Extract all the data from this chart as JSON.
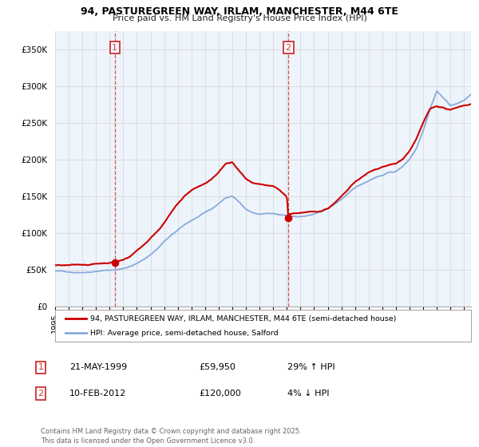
{
  "title1": "94, PASTUREGREEN WAY, IRLAM, MANCHESTER, M44 6TE",
  "title2": "Price paid vs. HM Land Registry's House Price Index (HPI)",
  "legend_line1": "94, PASTUREGREEN WAY, IRLAM, MANCHESTER, M44 6TE (semi-detached house)",
  "legend_line2": "HPI: Average price, semi-detached house, Salford",
  "annotation1_label": "1",
  "annotation1_date": "21-MAY-1999",
  "annotation1_price": "£59,950",
  "annotation1_hpi": "29% ↑ HPI",
  "annotation2_label": "2",
  "annotation2_date": "10-FEB-2012",
  "annotation2_price": "£120,000",
  "annotation2_hpi": "4% ↓ HPI",
  "footer": "Contains HM Land Registry data © Crown copyright and database right 2025.\nThis data is licensed under the Open Government Licence v3.0.",
  "transaction1_year": 1999.38,
  "transaction1_price": 59950,
  "transaction2_year": 2012.11,
  "transaction2_price": 120000,
  "red_color": "#cc0000",
  "blue_color": "#88aadd",
  "vline_color": "#cc3333",
  "grid_color": "#dddddd",
  "bg_color": "#ffffff",
  "plot_bg_color": "#eef4fb",
  "ylim": [
    0,
    375000
  ],
  "xlim_start": 1995,
  "xlim_end": 2025.5,
  "yticks": [
    0,
    50000,
    100000,
    150000,
    200000,
    250000,
    300000,
    350000
  ],
  "xticks": [
    1995,
    1996,
    1997,
    1998,
    1999,
    2000,
    2001,
    2002,
    2003,
    2004,
    2005,
    2006,
    2007,
    2008,
    2009,
    2010,
    2011,
    2012,
    2013,
    2014,
    2015,
    2016,
    2017,
    2018,
    2019,
    2020,
    2021,
    2022,
    2023,
    2024,
    2025
  ],
  "hpi_points": [
    [
      1995.0,
      48000
    ],
    [
      1995.5,
      47500
    ],
    [
      1996.0,
      47000
    ],
    [
      1996.5,
      46500
    ],
    [
      1997.0,
      47000
    ],
    [
      1997.5,
      48000
    ],
    [
      1998.0,
      49000
    ],
    [
      1998.5,
      50000
    ],
    [
      1999.0,
      50500
    ],
    [
      1999.5,
      51000
    ],
    [
      2000.0,
      53000
    ],
    [
      2000.5,
      56000
    ],
    [
      2001.0,
      60000
    ],
    [
      2001.5,
      65000
    ],
    [
      2002.0,
      72000
    ],
    [
      2002.5,
      80000
    ],
    [
      2003.0,
      90000
    ],
    [
      2003.5,
      98000
    ],
    [
      2004.0,
      105000
    ],
    [
      2004.5,
      112000
    ],
    [
      2005.0,
      118000
    ],
    [
      2005.5,
      123000
    ],
    [
      2006.0,
      128000
    ],
    [
      2006.5,
      133000
    ],
    [
      2007.0,
      140000
    ],
    [
      2007.5,
      148000
    ],
    [
      2008.0,
      150000
    ],
    [
      2008.5,
      143000
    ],
    [
      2009.0,
      133000
    ],
    [
      2009.5,
      128000
    ],
    [
      2010.0,
      126000
    ],
    [
      2010.5,
      127000
    ],
    [
      2011.0,
      126000
    ],
    [
      2011.5,
      124000
    ],
    [
      2012.0,
      123000
    ],
    [
      2012.5,
      122000
    ],
    [
      2013.0,
      122000
    ],
    [
      2013.5,
      123000
    ],
    [
      2014.0,
      125000
    ],
    [
      2014.5,
      128000
    ],
    [
      2015.0,
      132000
    ],
    [
      2015.5,
      138000
    ],
    [
      2016.0,
      145000
    ],
    [
      2016.5,
      152000
    ],
    [
      2017.0,
      160000
    ],
    [
      2017.5,
      165000
    ],
    [
      2018.0,
      170000
    ],
    [
      2018.5,
      175000
    ],
    [
      2019.0,
      178000
    ],
    [
      2019.5,
      182000
    ],
    [
      2020.0,
      183000
    ],
    [
      2020.5,
      190000
    ],
    [
      2021.0,
      200000
    ],
    [
      2021.5,
      215000
    ],
    [
      2022.0,
      240000
    ],
    [
      2022.5,
      270000
    ],
    [
      2023.0,
      295000
    ],
    [
      2023.5,
      285000
    ],
    [
      2024.0,
      275000
    ],
    [
      2024.5,
      278000
    ],
    [
      2025.0,
      282000
    ],
    [
      2025.5,
      290000
    ]
  ],
  "prop_points": [
    [
      1995.0,
      56000
    ],
    [
      1995.5,
      55500
    ],
    [
      1996.0,
      55000
    ],
    [
      1996.5,
      55000
    ],
    [
      1997.0,
      55500
    ],
    [
      1997.5,
      56000
    ],
    [
      1998.0,
      57000
    ],
    [
      1998.5,
      58000
    ],
    [
      1999.0,
      59000
    ],
    [
      1999.38,
      59950
    ],
    [
      1999.5,
      60500
    ],
    [
      2000.0,
      63000
    ],
    [
      2000.5,
      68000
    ],
    [
      2001.0,
      76000
    ],
    [
      2001.5,
      84000
    ],
    [
      2002.0,
      93000
    ],
    [
      2002.5,
      103000
    ],
    [
      2003.0,
      115000
    ],
    [
      2003.5,
      128000
    ],
    [
      2004.0,
      140000
    ],
    [
      2004.5,
      150000
    ],
    [
      2005.0,
      158000
    ],
    [
      2005.5,
      163000
    ],
    [
      2006.0,
      167000
    ],
    [
      2006.5,
      172000
    ],
    [
      2007.0,
      182000
    ],
    [
      2007.5,
      193000
    ],
    [
      2008.0,
      195000
    ],
    [
      2008.5,
      183000
    ],
    [
      2009.0,
      172000
    ],
    [
      2009.5,
      165000
    ],
    [
      2010.0,
      162000
    ],
    [
      2010.5,
      160000
    ],
    [
      2011.0,
      158000
    ],
    [
      2011.5,
      152000
    ],
    [
      2012.0,
      143000
    ],
    [
      2012.11,
      120000
    ],
    [
      2012.5,
      121000
    ],
    [
      2013.0,
      122000
    ],
    [
      2013.5,
      122000
    ],
    [
      2014.0,
      122500
    ],
    [
      2014.5,
      124000
    ],
    [
      2015.0,
      128000
    ],
    [
      2015.5,
      135000
    ],
    [
      2016.0,
      143000
    ],
    [
      2016.5,
      152000
    ],
    [
      2017.0,
      162000
    ],
    [
      2017.5,
      168000
    ],
    [
      2018.0,
      174000
    ],
    [
      2018.5,
      178000
    ],
    [
      2019.0,
      182000
    ],
    [
      2019.5,
      185000
    ],
    [
      2020.0,
      186000
    ],
    [
      2020.5,
      192000
    ],
    [
      2021.0,
      203000
    ],
    [
      2021.5,
      218000
    ],
    [
      2022.0,
      240000
    ],
    [
      2022.5,
      258000
    ],
    [
      2023.0,
      262000
    ],
    [
      2023.5,
      260000
    ],
    [
      2024.0,
      256000
    ],
    [
      2024.5,
      260000
    ],
    [
      2025.0,
      263000
    ],
    [
      2025.5,
      265000
    ]
  ]
}
